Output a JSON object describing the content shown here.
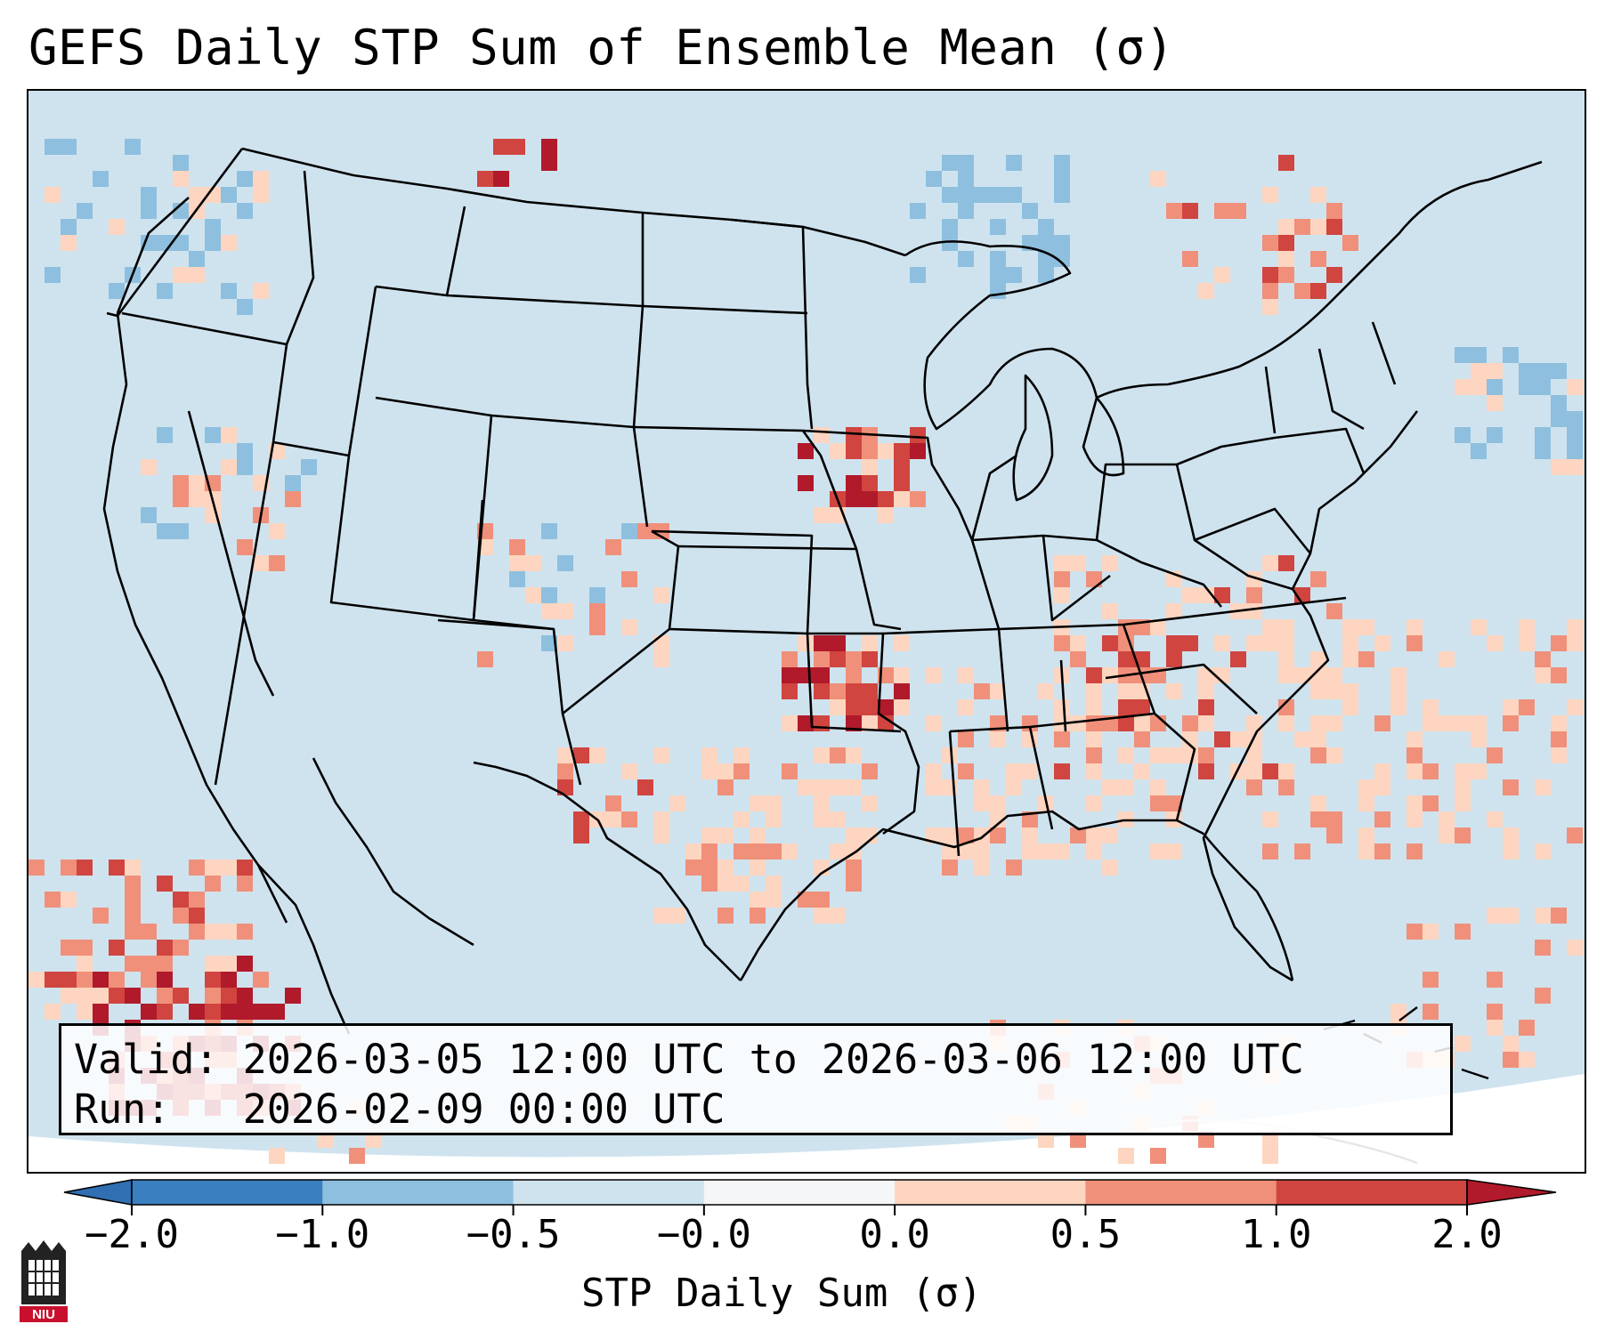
{
  "title": "GEFS Daily STP Sum of Ensemble Mean (σ)",
  "valid_label": "Valid:",
  "valid_value": "2026-03-05 12:00 UTC to 2026-03-06 12:00 UTC",
  "run_label": "Run:",
  "run_value": "2026-02-09 00:00 UTC",
  "colorbar": {
    "label": "STP Daily Sum (σ)",
    "ticks": [
      "−2.0",
      "−1.0",
      "−0.5",
      "−0.0",
      "0.0",
      "0.5",
      "1.0",
      "2.0"
    ],
    "colors": [
      "#3a7fbf",
      "#8ebfde",
      "#cfe3ef",
      "#f5f6f7",
      "#fdd5c0",
      "#f0907a",
      "#d0453f"
    ],
    "under_color": "#2f6fb2",
    "over_color": "#b01a2a"
  },
  "logo_text": "NIU",
  "legend_colors": {
    "ocean": "#cfe3ef",
    "neg_strong": "#8ebfde",
    "pos_light": "#fdd5c0",
    "pos_mid": "#f0907a",
    "pos_high": "#d0453f",
    "pos_max": "#b01a2a"
  }
}
